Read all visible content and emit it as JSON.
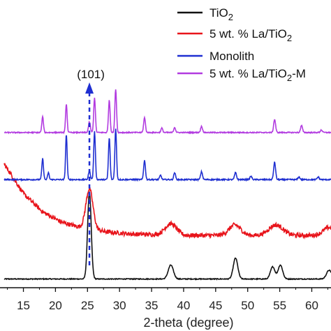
{
  "chart_data": {
    "type": "line",
    "xlabel": "2-theta (degree)",
    "ylabel": "",
    "title": "",
    "xlim": [
      12,
      63
    ],
    "x_ticks": [
      15,
      20,
      25,
      30,
      35,
      40,
      45,
      50,
      55,
      60
    ],
    "grid": false,
    "legend_position": "top-right",
    "y_axis_shown": false,
    "annotation": {
      "text": "(101)",
      "x": 25.3,
      "style": "dashed-arrow",
      "color": "#1f2fd1"
    },
    "series": [
      {
        "key": "tio2",
        "name_parts": [
          "TiO",
          "2",
          ""
        ],
        "color": "#111111",
        "baseline": 1.0,
        "noise": 0.05,
        "background": [],
        "peaks": [
          [
            25.3,
            10.0,
            0.28
          ],
          [
            38.0,
            1.6,
            0.4
          ],
          [
            48.1,
            2.4,
            0.35
          ],
          [
            53.9,
            1.4,
            0.35
          ],
          [
            55.1,
            1.6,
            0.35
          ],
          [
            62.7,
            1.0,
            0.4
          ]
        ]
      },
      {
        "key": "la_tio2",
        "name_parts": [
          "5 wt. % La/TiO",
          "2",
          ""
        ],
        "color": "#e8141b",
        "baseline": 6.0,
        "noise": 0.25,
        "background": [
          [
            12,
            8.2
          ],
          [
            15,
            4.8
          ],
          [
            18,
            2.7
          ],
          [
            21,
            1.5
          ],
          [
            24,
            0.9
          ],
          [
            28,
            0.4
          ],
          [
            32,
            0.15
          ],
          [
            40,
            0.0
          ],
          [
            63,
            0.0
          ]
        ],
        "peaks": [
          [
            25.3,
            4.6,
            0.55
          ],
          [
            38.0,
            1.3,
            0.9
          ],
          [
            48.0,
            1.2,
            0.9
          ],
          [
            54.4,
            1.2,
            1.1
          ],
          [
            62.7,
            0.9,
            0.9
          ]
        ]
      },
      {
        "key": "monolith",
        "name_parts": [
          "Monolith",
          "",
          ""
        ],
        "color": "#1f2fd1",
        "baseline": 12.4,
        "noise": 0.07,
        "background": [],
        "peaks": [
          [
            18.0,
            2.4,
            0.13
          ],
          [
            18.9,
            0.8,
            0.12
          ],
          [
            21.7,
            5.2,
            0.12
          ],
          [
            25.3,
            1.0,
            0.15
          ],
          [
            26.1,
            5.5,
            0.13
          ],
          [
            28.4,
            4.8,
            0.13
          ],
          [
            29.4,
            5.8,
            0.13
          ],
          [
            33.9,
            2.2,
            0.14
          ],
          [
            36.4,
            0.5,
            0.14
          ],
          [
            38.6,
            0.8,
            0.14
          ],
          [
            42.8,
            0.9,
            0.15
          ],
          [
            48.1,
            0.8,
            0.15
          ],
          [
            50.5,
            0.4,
            0.15
          ],
          [
            54.2,
            2.0,
            0.15
          ],
          [
            58.0,
            0.3,
            0.15
          ],
          [
            61.0,
            0.3,
            0.15
          ]
        ]
      },
      {
        "key": "la_tio2_m",
        "name_parts": [
          "5 wt. % La/TiO",
          "2",
          "-M"
        ],
        "color": "#b23be0",
        "baseline": 17.8,
        "noise": 0.06,
        "background": [],
        "peaks": [
          [
            18.0,
            1.8,
            0.13
          ],
          [
            21.7,
            3.3,
            0.12
          ],
          [
            25.3,
            1.2,
            0.15
          ],
          [
            26.1,
            4.0,
            0.13
          ],
          [
            28.4,
            3.7,
            0.13
          ],
          [
            29.4,
            5.0,
            0.13
          ],
          [
            33.9,
            1.7,
            0.14
          ],
          [
            36.6,
            0.5,
            0.14
          ],
          [
            38.6,
            0.6,
            0.14
          ],
          [
            42.8,
            0.7,
            0.15
          ],
          [
            54.2,
            1.5,
            0.15
          ],
          [
            58.4,
            0.8,
            0.15
          ],
          [
            61.5,
            0.3,
            0.15
          ]
        ]
      }
    ]
  }
}
